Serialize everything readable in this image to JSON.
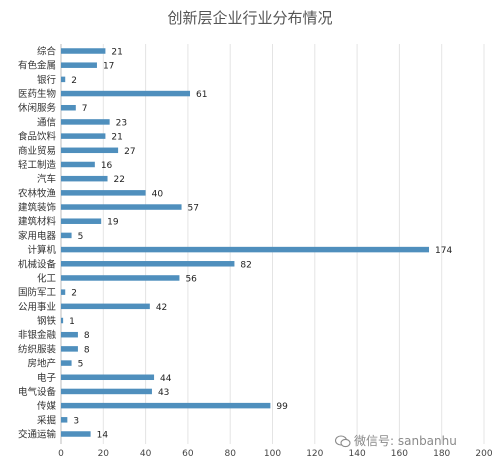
{
  "chart_data": {
    "type": "bar",
    "orientation": "horizontal",
    "title": "创新层企业行业分布情况",
    "categories": [
      "综合",
      "有色金属",
      "银行",
      "医药生物",
      "休闲服务",
      "通信",
      "食品饮料",
      "商业贸易",
      "轻工制造",
      "汽车",
      "农林牧渔",
      "建筑装饰",
      "建筑材料",
      "家用电器",
      "计算机",
      "机械设备",
      "化工",
      "国防军工",
      "公用事业",
      "钢铁",
      "非银金融",
      "纺织服装",
      "房地产",
      "电子",
      "电气设备",
      "传媒",
      "采掘",
      "交通运输"
    ],
    "values": [
      21,
      17,
      2,
      61,
      7,
      23,
      21,
      27,
      16,
      22,
      40,
      57,
      19,
      5,
      174,
      82,
      56,
      2,
      42,
      1,
      8,
      8,
      5,
      44,
      43,
      99,
      3,
      14
    ],
    "xlim": [
      0,
      200
    ],
    "xticks": [
      "0",
      "20",
      "40",
      "60",
      "80",
      "100",
      "120",
      "140",
      "160",
      "180",
      "200"
    ],
    "grid": true,
    "bar_color": "#4f8fbd"
  },
  "watermark": {
    "icon": "wechat-icon",
    "text": "微信号: sanbanhu"
  }
}
